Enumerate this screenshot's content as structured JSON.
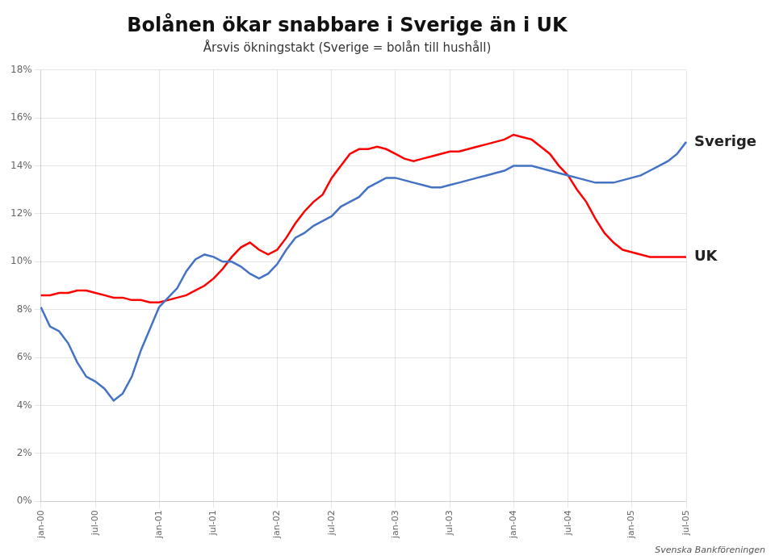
{
  "chart_data": {
    "type": "line",
    "title": "Bolånen ökar snabbare i Sverige än i UK",
    "subtitle": "Årsvis ökningstakt (Sverige = bolån till hushåll)",
    "annotations": [
      "Svenska Bankföreningen"
    ],
    "categories": [
      "jan-00",
      null,
      null,
      null,
      null,
      null,
      "jul-00",
      null,
      null,
      null,
      null,
      null,
      null,
      "jan-01",
      null,
      null,
      null,
      null,
      null,
      "jul-01",
      null,
      null,
      null,
      null,
      null,
      null,
      "jan-02",
      null,
      null,
      null,
      null,
      null,
      "jul-02",
      null,
      null,
      null,
      null,
      null,
      null,
      "jan-03",
      null,
      null,
      null,
      null,
      null,
      "jul-03",
      null,
      null,
      null,
      null,
      null,
      null,
      "jan-04",
      null,
      null,
      null,
      null,
      null,
      "jul-04",
      null,
      null,
      null,
      null,
      null,
      null,
      "jan-05",
      null,
      null,
      null,
      null,
      null,
      "jul-05"
    ],
    "series": [
      {
        "name": "Sverige",
        "color": "#4472C4",
        "values": [
          8.1,
          7.3,
          7.1,
          6.6,
          5.8,
          5.2,
          5.0,
          4.7,
          4.2,
          4.5,
          5.2,
          6.3,
          7.2,
          8.1,
          8.5,
          8.9,
          9.6,
          10.1,
          10.3,
          10.2,
          10.0,
          10.0,
          9.8,
          9.5,
          9.3,
          9.5,
          9.9,
          10.5,
          11.0,
          11.2,
          11.5,
          11.7,
          11.9,
          12.3,
          12.5,
          12.7,
          13.1,
          13.3,
          13.5,
          13.5,
          13.4,
          13.3,
          13.2,
          13.1,
          13.1,
          13.2,
          13.3,
          13.4,
          13.5,
          13.6,
          13.7,
          13.8,
          14.0,
          14.0,
          14.0,
          13.9,
          13.8,
          13.7,
          13.6,
          13.5,
          13.4,
          13.3,
          13.3,
          13.3,
          13.4,
          13.5,
          13.6,
          13.8,
          14.0,
          14.2,
          14.5,
          15.0
        ]
      },
      {
        "name": "UK",
        "color": "#FF0000",
        "values": [
          8.6,
          8.6,
          8.7,
          8.7,
          8.8,
          8.8,
          8.7,
          8.6,
          8.5,
          8.5,
          8.4,
          8.4,
          8.3,
          8.3,
          8.4,
          8.5,
          8.6,
          8.8,
          9.0,
          9.3,
          9.7,
          10.2,
          10.6,
          10.8,
          10.5,
          10.3,
          10.5,
          11.0,
          11.6,
          12.1,
          12.5,
          12.8,
          13.5,
          14.0,
          14.5,
          14.7,
          14.7,
          14.8,
          14.7,
          14.5,
          14.3,
          14.2,
          14.3,
          14.4,
          14.5,
          14.6,
          14.6,
          14.7,
          14.8,
          14.9,
          15.0,
          15.1,
          15.3,
          15.2,
          15.1,
          14.8,
          14.5,
          14.0,
          13.6,
          13.0,
          12.5,
          11.8,
          11.2,
          10.8,
          10.5,
          10.4,
          10.3,
          10.2,
          10.2,
          10.2,
          10.2,
          10.2
        ]
      }
    ],
    "ylim": [
      0,
      18
    ],
    "yticks": [
      {
        "value": 0,
        "label": "0%"
      },
      {
        "value": 2,
        "label": "2%"
      },
      {
        "value": 4,
        "label": "4%"
      },
      {
        "value": 6,
        "label": "6%"
      },
      {
        "value": 8,
        "label": "8%"
      },
      {
        "value": 10,
        "label": "10%"
      },
      {
        "value": 12,
        "label": "12%"
      },
      {
        "value": 14,
        "label": "14%"
      },
      {
        "value": 16,
        "label": "16%"
      },
      {
        "value": 18,
        "label": "18%"
      }
    ],
    "grid": true
  }
}
